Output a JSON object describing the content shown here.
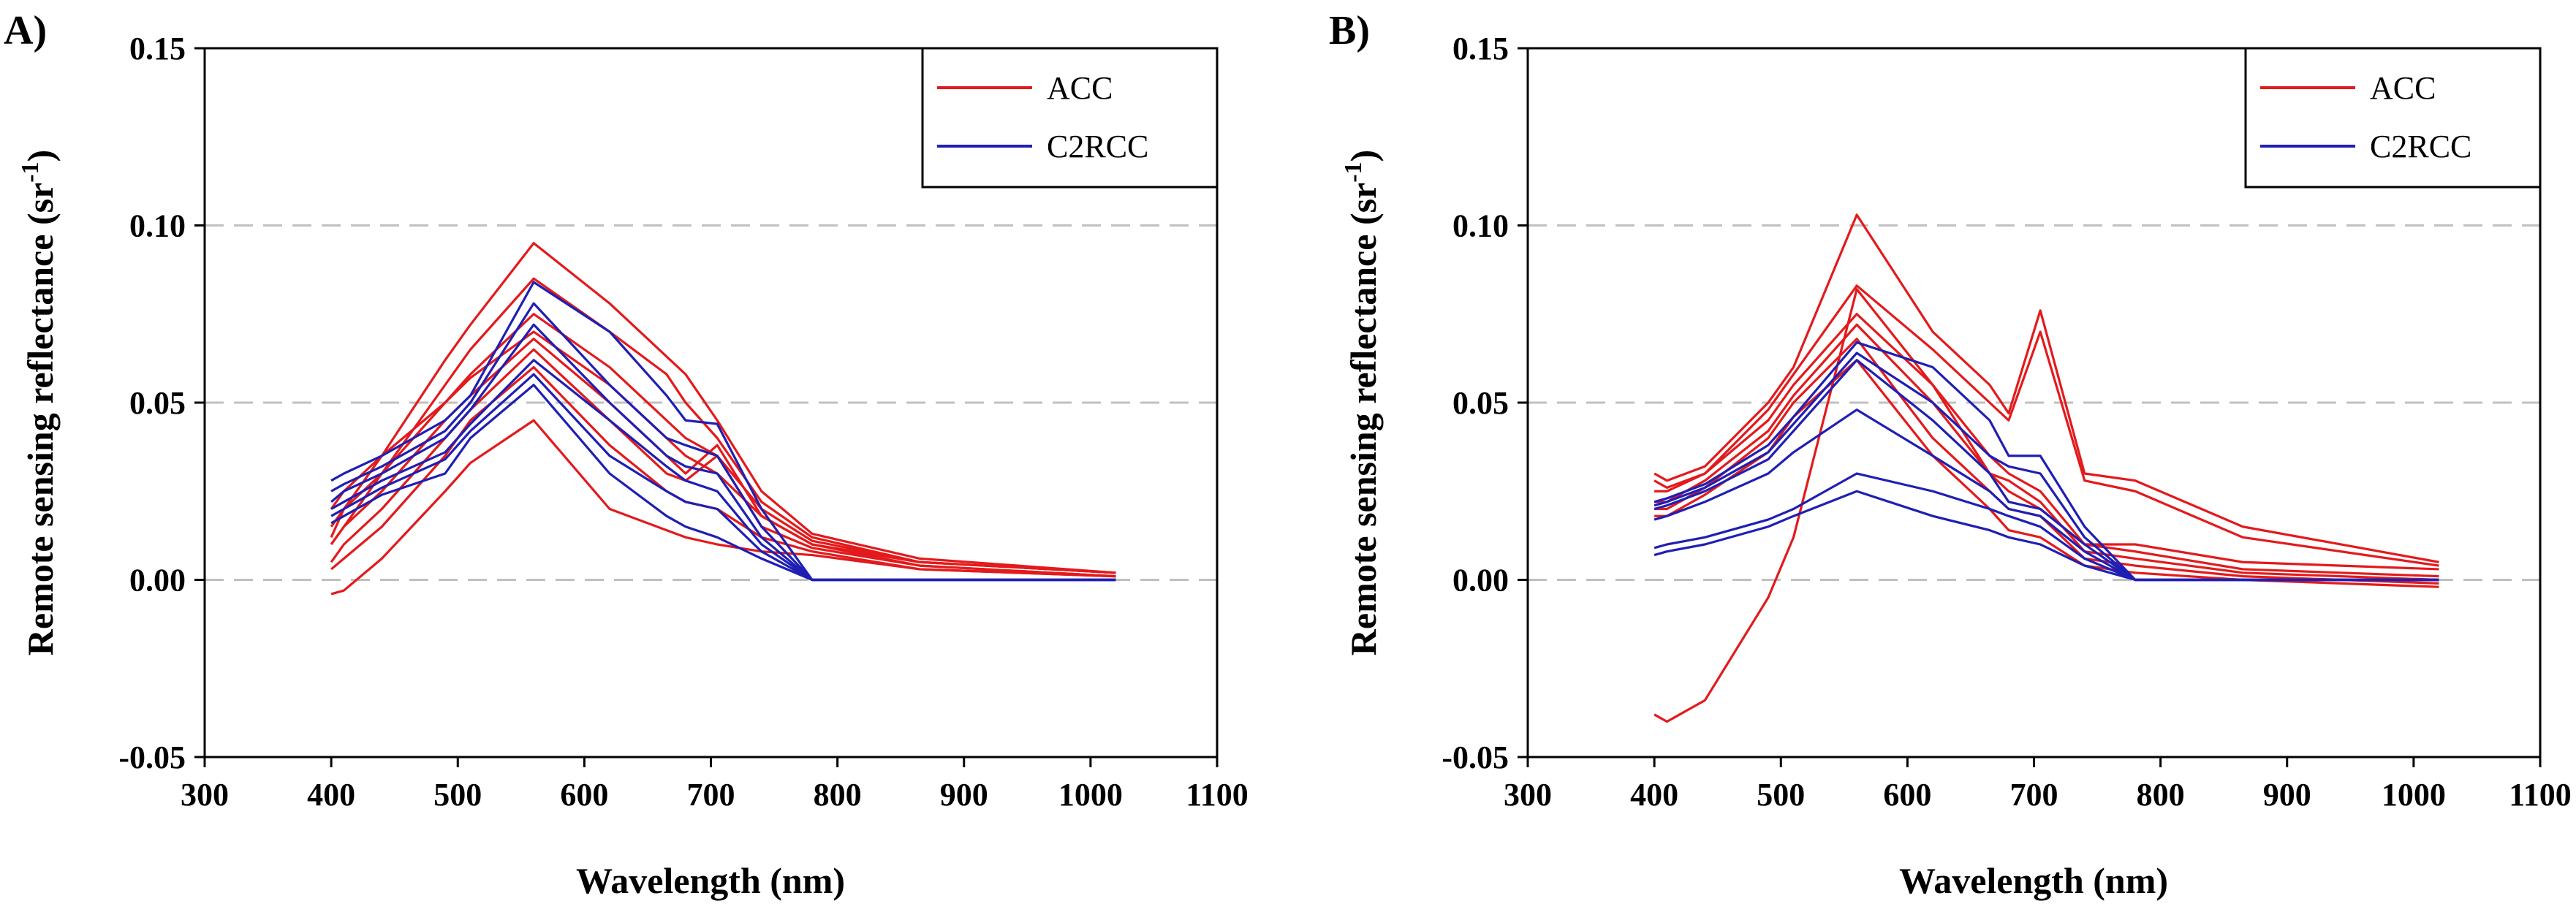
{
  "chart_data": [
    {
      "type": "line",
      "panel_label": "A)",
      "xlabel": "Wavelength (nm)",
      "ylabel": "Remote sensing reflectance (sr",
      "ylabel_sup": "-1",
      "ylabel_close": ")",
      "xlim": [
        300,
        1100
      ],
      "ylim": [
        -0.05,
        0.15
      ],
      "x_ticks": [
        300,
        400,
        500,
        600,
        700,
        800,
        900,
        1000,
        1100
      ],
      "y_ticks": [
        -0.05,
        0.0,
        0.05,
        0.1,
        0.15
      ],
      "y_tick_labels": [
        "-0.05",
        "0.00",
        "0.05",
        "0.10",
        "0.15"
      ],
      "gridlines_y": [
        0.0,
        0.05,
        0.1
      ],
      "legend": {
        "position": "top-right",
        "entries": [
          {
            "name": "ACC",
            "color": "#e31a1c"
          },
          {
            "name": "C2RCC",
            "color": "#1f1fb4"
          }
        ]
      },
      "x": [
        400,
        410,
        440,
        490,
        510,
        560,
        620,
        665,
        680,
        705,
        740,
        780,
        865,
        1020
      ],
      "series": [
        {
          "name": "ACC",
          "color": "#e31a1c",
          "values": [
            0.012,
            0.02,
            0.035,
            0.062,
            0.072,
            0.095,
            0.078,
            0.063,
            0.058,
            0.045,
            0.025,
            0.013,
            0.006,
            0.002
          ]
        },
        {
          "name": "ACC",
          "color": "#e31a1c",
          "values": [
            0.01,
            0.015,
            0.03,
            0.055,
            0.065,
            0.085,
            0.07,
            0.058,
            0.05,
            0.04,
            0.022,
            0.012,
            0.005,
            0.002
          ]
        },
        {
          "name": "ACC",
          "color": "#e31a1c",
          "values": [
            0.015,
            0.02,
            0.03,
            0.05,
            0.058,
            0.075,
            0.06,
            0.045,
            0.04,
            0.035,
            0.02,
            0.011,
            0.005,
            0.002
          ]
        },
        {
          "name": "ACC",
          "color": "#e31a1c",
          "values": [
            0.01,
            0.015,
            0.025,
            0.045,
            0.052,
            0.068,
            0.05,
            0.035,
            0.03,
            0.038,
            0.018,
            0.01,
            0.004,
            0.001
          ]
        },
        {
          "name": "ACC",
          "color": "#e31a1c",
          "values": [
            0.005,
            0.01,
            0.02,
            0.04,
            0.048,
            0.065,
            0.045,
            0.03,
            0.028,
            0.035,
            0.015,
            0.009,
            0.004,
            0.001
          ]
        },
        {
          "name": "ACC",
          "color": "#e31a1c",
          "values": [
            0.003,
            0.006,
            0.015,
            0.035,
            0.045,
            0.06,
            0.038,
            0.025,
            0.022,
            0.02,
            0.012,
            0.008,
            0.003,
            0.001
          ]
        },
        {
          "name": "ACC",
          "color": "#e31a1c",
          "values": [
            -0.004,
            -0.003,
            0.006,
            0.025,
            0.033,
            0.045,
            0.02,
            0.014,
            0.012,
            0.01,
            0.008,
            0.007,
            0.003,
            0.001
          ]
        },
        {
          "name": "ACC",
          "color": "#e31a1c",
          "values": [
            0.02,
            0.025,
            0.035,
            0.05,
            0.057,
            0.07,
            0.055,
            0.04,
            0.035,
            0.03,
            0.018,
            0.01,
            0.005,
            0.002
          ]
        },
        {
          "name": "C2RCC",
          "color": "#1f1fb4",
          "values": [
            0.028,
            0.03,
            0.035,
            0.045,
            0.052,
            0.084,
            0.07,
            0.052,
            0.045,
            0.044,
            0.02,
            0.0,
            0.0,
            0.0
          ]
        },
        {
          "name": "C2RCC",
          "color": "#1f1fb4",
          "values": [
            0.025,
            0.027,
            0.032,
            0.042,
            0.05,
            0.078,
            0.055,
            0.04,
            0.038,
            0.035,
            0.015,
            0.0,
            0.0,
            0.0
          ]
        },
        {
          "name": "C2RCC",
          "color": "#1f1fb4",
          "values": [
            0.022,
            0.025,
            0.03,
            0.04,
            0.048,
            0.072,
            0.05,
            0.035,
            0.032,
            0.03,
            0.012,
            0.0,
            0.0,
            0.0
          ]
        },
        {
          "name": "C2RCC",
          "color": "#1f1fb4",
          "values": [
            0.02,
            0.022,
            0.028,
            0.036,
            0.044,
            0.062,
            0.045,
            0.032,
            0.028,
            0.025,
            0.01,
            0.0,
            0.0,
            0.0
          ]
        },
        {
          "name": "C2RCC",
          "color": "#1f1fb4",
          "values": [
            0.018,
            0.02,
            0.026,
            0.034,
            0.042,
            0.058,
            0.035,
            0.025,
            0.022,
            0.02,
            0.008,
            0.0,
            0.0,
            0.0
          ]
        },
        {
          "name": "C2RCC",
          "color": "#1f1fb4",
          "values": [
            0.016,
            0.018,
            0.024,
            0.03,
            0.04,
            0.055,
            0.03,
            0.018,
            0.015,
            0.012,
            0.006,
            0.0,
            0.0,
            0.0
          ]
        }
      ]
    },
    {
      "type": "line",
      "panel_label": "B)",
      "xlabel": "Wavelength (nm)",
      "ylabel": "Remote sensing reflectance (sr",
      "ylabel_sup": "-1",
      "ylabel_close": ")",
      "xlim": [
        300,
        1100
      ],
      "ylim": [
        -0.05,
        0.15
      ],
      "x_ticks": [
        300,
        400,
        500,
        600,
        700,
        800,
        900,
        1000,
        1100
      ],
      "y_ticks": [
        -0.05,
        0.0,
        0.05,
        0.1,
        0.15
      ],
      "y_tick_labels": [
        "-0.05",
        "0.00",
        "0.05",
        "0.10",
        "0.15"
      ],
      "gridlines_y": [
        0.0,
        0.05,
        0.1
      ],
      "legend": {
        "position": "top-right",
        "entries": [
          {
            "name": "ACC",
            "color": "#e31a1c"
          },
          {
            "name": "C2RCC",
            "color": "#1f1fb4"
          }
        ]
      },
      "x": [
        400,
        410,
        440,
        490,
        510,
        560,
        620,
        665,
        680,
        705,
        740,
        780,
        865,
        1020
      ],
      "series": [
        {
          "name": "ACC",
          "color": "#e31a1c",
          "values": [
            0.03,
            0.028,
            0.032,
            0.05,
            0.06,
            0.103,
            0.07,
            0.055,
            0.047,
            0.076,
            0.03,
            0.028,
            0.015,
            0.005
          ]
        },
        {
          "name": "ACC",
          "color": "#e31a1c",
          "values": [
            0.028,
            0.026,
            0.03,
            0.048,
            0.058,
            0.083,
            0.065,
            0.05,
            0.045,
            0.07,
            0.028,
            0.025,
            0.012,
            0.004
          ]
        },
        {
          "name": "ACC",
          "color": "#e31a1c",
          "values": [
            -0.038,
            -0.04,
            -0.034,
            -0.005,
            0.012,
            0.082,
            0.055,
            0.03,
            0.025,
            0.02,
            0.01,
            0.01,
            0.005,
            0.003
          ]
        },
        {
          "name": "ACC",
          "color": "#e31a1c",
          "values": [
            0.025,
            0.025,
            0.03,
            0.045,
            0.055,
            0.075,
            0.055,
            0.035,
            0.03,
            0.025,
            0.01,
            0.008,
            0.003,
            0.001
          ]
        },
        {
          "name": "ACC",
          "color": "#e31a1c",
          "values": [
            0.022,
            0.022,
            0.028,
            0.042,
            0.052,
            0.072,
            0.05,
            0.03,
            0.028,
            0.022,
            0.008,
            0.006,
            0.002,
            0.0
          ]
        },
        {
          "name": "ACC",
          "color": "#e31a1c",
          "values": [
            0.02,
            0.02,
            0.026,
            0.04,
            0.05,
            0.068,
            0.04,
            0.025,
            0.02,
            0.018,
            0.006,
            0.004,
            0.001,
            -0.001
          ]
        },
        {
          "name": "ACC",
          "color": "#e31a1c",
          "values": [
            0.018,
            0.018,
            0.024,
            0.036,
            0.046,
            0.062,
            0.035,
            0.02,
            0.014,
            0.012,
            0.004,
            0.002,
            0.0,
            -0.002
          ]
        },
        {
          "name": "C2RCC",
          "color": "#1f1fb4",
          "values": [
            0.022,
            0.023,
            0.027,
            0.038,
            0.046,
            0.067,
            0.06,
            0.045,
            0.035,
            0.035,
            0.015,
            0.0,
            0.0,
            0.0
          ]
        },
        {
          "name": "C2RCC",
          "color": "#1f1fb4",
          "values": [
            0.021,
            0.022,
            0.026,
            0.036,
            0.044,
            0.064,
            0.05,
            0.035,
            0.032,
            0.03,
            0.012,
            0.0,
            0.0,
            0.0
          ]
        },
        {
          "name": "C2RCC",
          "color": "#1f1fb4",
          "values": [
            0.02,
            0.021,
            0.025,
            0.034,
            0.042,
            0.062,
            0.045,
            0.03,
            0.022,
            0.02,
            0.01,
            0.0,
            0.0,
            0.0
          ]
        },
        {
          "name": "C2RCC",
          "color": "#1f1fb4",
          "values": [
            0.017,
            0.018,
            0.022,
            0.03,
            0.036,
            0.048,
            0.035,
            0.025,
            0.02,
            0.018,
            0.008,
            0.0,
            0.0,
            0.0
          ]
        },
        {
          "name": "C2RCC",
          "color": "#1f1fb4",
          "values": [
            0.009,
            0.01,
            0.012,
            0.017,
            0.02,
            0.03,
            0.025,
            0.02,
            0.018,
            0.015,
            0.006,
            0.0,
            0.0,
            0.0
          ]
        },
        {
          "name": "C2RCC",
          "color": "#1f1fb4",
          "values": [
            0.007,
            0.008,
            0.01,
            0.015,
            0.018,
            0.025,
            0.018,
            0.014,
            0.012,
            0.01,
            0.004,
            0.0,
            0.0,
            0.0
          ]
        }
      ]
    }
  ]
}
